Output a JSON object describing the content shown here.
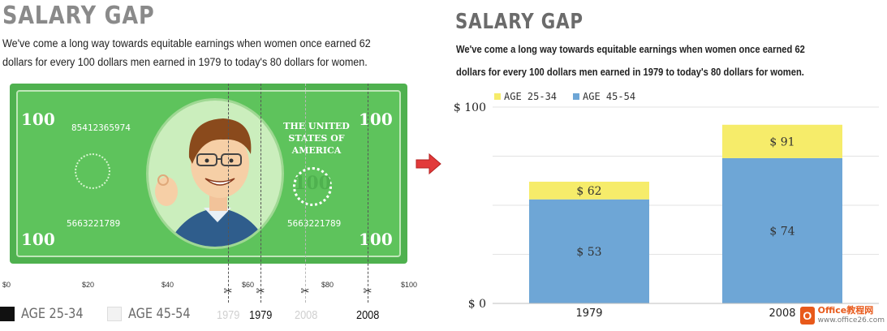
{
  "left": {
    "title": "SALARY GAP",
    "subtitle": "We've come a long way towards equitable earnings when women once earned 62 dollars for every 100 dollars men earned in 1979 to today's 80 dollars for women.",
    "bill": {
      "corner_number": "100",
      "serial_top": "85412365974",
      "serial_bottom_left": "5663221789",
      "serial_bottom_right": "5663221789",
      "us_text": "THE UNITED STATES OF AMERICA",
      "seal_number": "100"
    },
    "axis_ticks": [
      "$0",
      "$20",
      "$40",
      "$60",
      "$80",
      "$100"
    ],
    "legend": [
      {
        "label": "AGE 25-34",
        "color": "#111111"
      },
      {
        "label": "AGE 45-54",
        "color": "#f2f2f2"
      }
    ],
    "years": [
      {
        "label": "1979",
        "highlight": false,
        "value": 53
      },
      {
        "label": "1979",
        "highlight": true,
        "value": 62
      },
      {
        "label": "2008",
        "highlight": false,
        "value": 74
      },
      {
        "label": "2008",
        "highlight": true,
        "value": 91
      }
    ]
  },
  "right": {
    "title": "SALARY GAP",
    "subtitle_line1": "We've come a long way towards equitable earnings when women once earned 62",
    "subtitle_line2": "dollars for every 100 dollars men earned in 1979 to today's 80 dollars for women."
  },
  "chart_data": {
    "type": "bar",
    "stacked": true,
    "categories": [
      "1979",
      "2008"
    ],
    "series": [
      {
        "name": "AGE 45-54",
        "values": [
          53,
          74
        ],
        "color": "#6ea6d6",
        "labels": [
          "$ 53",
          "$ 74"
        ]
      },
      {
        "name": "AGE 25-34",
        "values": [
          9,
          17
        ],
        "color": "#f6ec6a",
        "labels": [
          "$ 62",
          "$ 91"
        ]
      }
    ],
    "legend_order": [
      "AGE 25-34",
      "AGE 45-54"
    ],
    "ylim": [
      0,
      100
    ],
    "y_tick_labels": [
      "$ 0",
      "$ 100"
    ],
    "grid": true,
    "legend_position": "top-left"
  },
  "watermark": {
    "logo_glyph": "O",
    "name": "Office教程网",
    "url": "www.office26.com"
  }
}
